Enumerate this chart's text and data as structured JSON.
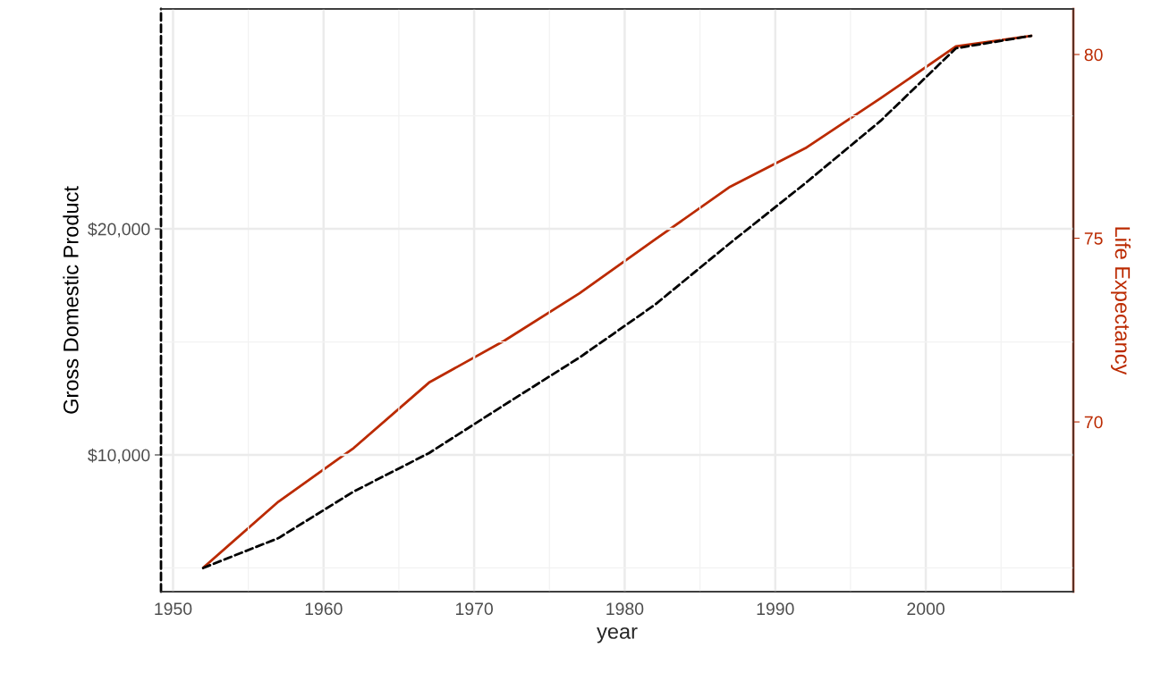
{
  "chart_data": {
    "type": "line",
    "xlabel": "year",
    "ylabel": "Gross Domestic Product",
    "y2label": "Life Expectancy",
    "x": [
      1952,
      1957,
      1962,
      1967,
      1972,
      1977,
      1982,
      1987,
      1992,
      1997,
      2002,
      2007
    ],
    "series": [
      {
        "color": "#000000",
        "line_style": "dashed",
        "values": [
          5000,
          6320,
          8380,
          10080,
          12210,
          14310,
          16640,
          19370,
          22020,
          24780,
          27990,
          28540
        ]
      },
      {
        "color": "#bb2a00",
        "line_style": "solid",
        "axis": "y2",
        "values": [
          66.03,
          67.83,
          69.29,
          71.07,
          72.21,
          73.5,
          74.96,
          76.4,
          77.45,
          78.81,
          80.22,
          80.51
        ]
      }
    ],
    "xlim": [
      1949.2,
      2009.8
    ],
    "xticks": [
      1950,
      1960,
      1970,
      1980,
      1990,
      2000
    ],
    "ylim": [
      3950,
      29730
    ],
    "yticks": [
      {
        "value": 10000,
        "label": "$10,000"
      },
      {
        "value": 20000,
        "label": "$20,000"
      }
    ],
    "y2lim": [
      65.38,
      81.24
    ],
    "y2ticks": [
      70,
      75,
      80
    ],
    "grid": true,
    "legend": false
  }
}
